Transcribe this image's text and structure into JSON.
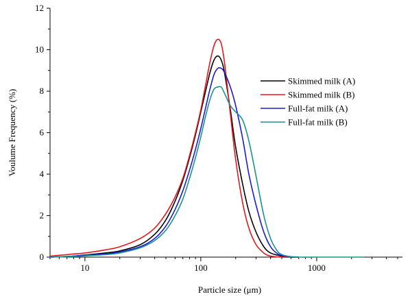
{
  "chart_data": {
    "type": "line",
    "title": "",
    "xlabel": "Particle size (μm)",
    "ylabel": "Voulume Frequency (%)",
    "x_scale": "log",
    "xlim": [
      5,
      5500
    ],
    "ylim": [
      0,
      12
    ],
    "x_ticks": [
      10,
      100,
      1000
    ],
    "x_tick_labels": [
      "10",
      "100",
      "1000"
    ],
    "y_ticks": [
      0,
      2,
      4,
      6,
      8,
      10,
      12
    ],
    "y_tick_labels": [
      "0",
      "2",
      "4",
      "6",
      "8",
      "10",
      "12"
    ],
    "grid": false,
    "legend_position": "right",
    "series": [
      {
        "name": "Skimmed milk (A)",
        "color": "#000000",
        "x": [
          5,
          8,
          10,
          15,
          20,
          30,
          40,
          50,
          60,
          70,
          80,
          90,
          100,
          110,
          120,
          130,
          140,
          150,
          160,
          180,
          200,
          230,
          260,
          300,
          350,
          400,
          500,
          600,
          700
        ],
        "y": [
          0.0,
          0.05,
          0.1,
          0.2,
          0.3,
          0.6,
          1.1,
          1.8,
          2.7,
          3.7,
          4.8,
          5.9,
          7.0,
          8.0,
          8.9,
          9.5,
          9.7,
          9.5,
          8.9,
          7.1,
          5.3,
          3.5,
          2.2,
          1.2,
          0.5,
          0.2,
          0.05,
          0.0,
          0.0
        ]
      },
      {
        "name": "Skimmed milk (B)",
        "color": "#e8141b",
        "x": [
          5,
          8,
          10,
          15,
          20,
          30,
          40,
          50,
          60,
          70,
          80,
          90,
          100,
          110,
          120,
          130,
          140,
          150,
          160,
          180,
          200,
          230,
          260,
          300,
          350,
          400,
          500,
          600
        ],
        "y": [
          0.05,
          0.15,
          0.2,
          0.35,
          0.5,
          0.9,
          1.4,
          2.1,
          2.9,
          3.8,
          4.9,
          6.0,
          7.1,
          8.3,
          9.4,
          10.2,
          10.5,
          10.3,
          9.4,
          6.9,
          4.7,
          2.6,
          1.4,
          0.6,
          0.2,
          0.05,
          0.0,
          0.0
        ]
      },
      {
        "name": "Full-fat milk (A)",
        "color": "#1a1ad4",
        "x": [
          5,
          8,
          10,
          15,
          20,
          30,
          40,
          50,
          60,
          70,
          80,
          90,
          100,
          110,
          120,
          130,
          140,
          150,
          160,
          180,
          200,
          230,
          260,
          300,
          350,
          400,
          450,
          500,
          600,
          700
        ],
        "y": [
          0.0,
          0.05,
          0.1,
          0.15,
          0.25,
          0.5,
          0.9,
          1.5,
          2.3,
          3.2,
          4.2,
          5.2,
          6.2,
          7.2,
          8.1,
          8.8,
          9.1,
          9.1,
          8.9,
          8.2,
          7.3,
          5.7,
          4.0,
          2.5,
          1.2,
          0.5,
          0.2,
          0.08,
          0.02,
          0.0
        ]
      },
      {
        "name": "Full-fat milk (B)",
        "color": "#15938e",
        "x": [
          5,
          8,
          10,
          15,
          20,
          30,
          40,
          50,
          60,
          70,
          80,
          90,
          100,
          110,
          120,
          130,
          140,
          150,
          160,
          180,
          200,
          230,
          260,
          300,
          350,
          400,
          450,
          500,
          600,
          700,
          1000,
          2600
        ],
        "y": [
          0.0,
          0.03,
          0.06,
          0.12,
          0.2,
          0.45,
          0.8,
          1.3,
          2.0,
          2.8,
          3.8,
          4.8,
          5.8,
          6.8,
          7.6,
          8.1,
          8.2,
          8.2,
          7.9,
          7.3,
          7.0,
          6.6,
          5.6,
          3.9,
          2.0,
          0.9,
          0.35,
          0.12,
          0.02,
          0.0,
          0.0,
          0.0
        ]
      }
    ]
  }
}
